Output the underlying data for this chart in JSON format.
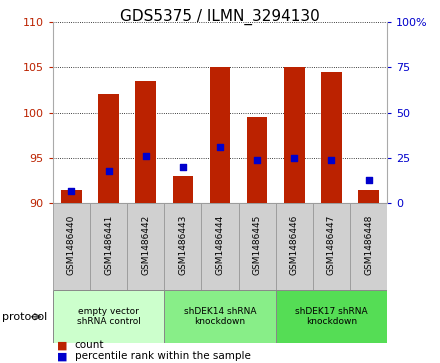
{
  "title": "GDS5375 / ILMN_3294130",
  "samples": [
    "GSM1486440",
    "GSM1486441",
    "GSM1486442",
    "GSM1486443",
    "GSM1486444",
    "GSM1486445",
    "GSM1486446",
    "GSM1486447",
    "GSM1486448"
  ],
  "counts": [
    91.5,
    102.0,
    103.5,
    93.0,
    105.0,
    99.5,
    105.0,
    104.5,
    91.5
  ],
  "percentiles": [
    7,
    18,
    26,
    20,
    31,
    24,
    25,
    24,
    13
  ],
  "ylim_left": [
    90,
    110
  ],
  "ylim_right": [
    0,
    100
  ],
  "yticks_left": [
    90,
    95,
    100,
    105,
    110
  ],
  "yticks_right": [
    0,
    25,
    50,
    75,
    100
  ],
  "bar_color": "#bb2200",
  "dot_color": "#0000cc",
  "bar_bottom": 90,
  "groups": [
    {
      "label": "empty vector\nshRNA control",
      "start": 0,
      "end": 3
    },
    {
      "label": "shDEK14 shRNA\nknockdown",
      "start": 3,
      "end": 6
    },
    {
      "label": "shDEK17 shRNA\nknockdown",
      "start": 6,
      "end": 9
    }
  ],
  "group_colors": [
    "#ccffcc",
    "#aaffaa",
    "#55ee55"
  ],
  "legend_count_label": "count",
  "legend_pct_label": "percentile rank within the sample",
  "protocol_label": "protocol",
  "xticklabels_bg": "#d8d8d8",
  "plot_bg": "#ffffff",
  "title_fontsize": 11,
  "tick_fontsize": 8,
  "bar_width": 0.55
}
